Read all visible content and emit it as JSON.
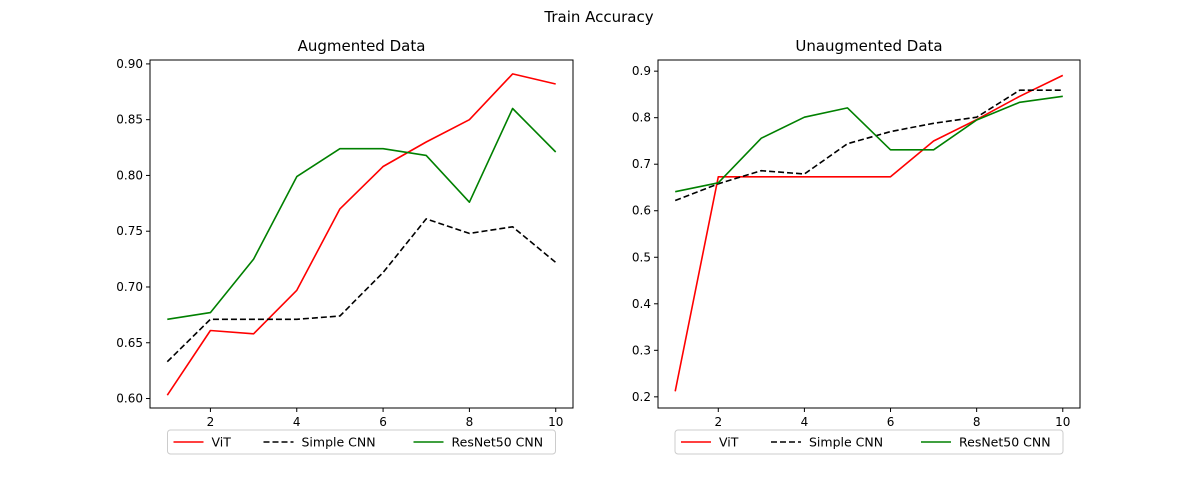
{
  "figure": {
    "title": "Train Accuracy"
  },
  "chart_data": [
    {
      "type": "line",
      "title": "Augmented Data",
      "xlabel": "",
      "ylabel": "",
      "xlim": [
        0.6,
        10.4
      ],
      "ylim": [
        0.5915,
        0.9035
      ],
      "xticks": [
        2,
        4,
        6,
        8,
        10
      ],
      "yticks": [
        0.6,
        0.65,
        0.7,
        0.75,
        0.8,
        0.85,
        0.9
      ],
      "ytick_labels": [
        "0.60",
        "0.65",
        "0.70",
        "0.75",
        "0.80",
        "0.85",
        "0.90"
      ],
      "grid": false,
      "legend_position": "bottom-center",
      "x": [
        1,
        2,
        3,
        4,
        5,
        6,
        7,
        8,
        9,
        10
      ],
      "series": [
        {
          "name": "ViT",
          "color": "#ff0000",
          "dash": "solid",
          "values": [
            0.603,
            0.661,
            0.658,
            0.697,
            0.77,
            0.808,
            0.83,
            0.85,
            0.891,
            0.882
          ]
        },
        {
          "name": "Simple CNN",
          "color": "#000000",
          "dash": "dashed",
          "values": [
            0.633,
            0.671,
            0.671,
            0.671,
            0.674,
            0.713,
            0.761,
            0.748,
            0.754,
            0.722
          ]
        },
        {
          "name": "ResNet50 CNN",
          "color": "#008000",
          "dash": "solid",
          "values": [
            0.671,
            0.677,
            0.725,
            0.799,
            0.824,
            0.824,
            0.818,
            0.776,
            0.86,
            0.821
          ]
        }
      ]
    },
    {
      "type": "line",
      "title": "Unaugmented Data",
      "xlabel": "",
      "ylabel": "",
      "xlim": [
        0.6,
        10.4
      ],
      "ylim": [
        0.176,
        0.924
      ],
      "xticks": [
        2,
        4,
        6,
        8,
        10
      ],
      "yticks": [
        0.2,
        0.3,
        0.4,
        0.5,
        0.6,
        0.7,
        0.8,
        0.9
      ],
      "ytick_labels": [
        "0.2",
        "0.3",
        "0.4",
        "0.5",
        "0.6",
        "0.7",
        "0.8",
        "0.9"
      ],
      "grid": false,
      "legend_position": "bottom-center",
      "x": [
        1,
        2,
        3,
        4,
        5,
        6,
        7,
        8,
        9,
        10
      ],
      "series": [
        {
          "name": "ViT",
          "color": "#ff0000",
          "dash": "solid",
          "values": [
            0.212,
            0.673,
            0.673,
            0.673,
            0.673,
            0.673,
            0.75,
            0.796,
            0.846,
            0.891
          ]
        },
        {
          "name": "Simple CNN",
          "color": "#000000",
          "dash": "dashed",
          "values": [
            0.622,
            0.658,
            0.686,
            0.679,
            0.744,
            0.77,
            0.788,
            0.801,
            0.859,
            0.859
          ]
        },
        {
          "name": "ResNet50 CNN",
          "color": "#008000",
          "dash": "solid",
          "values": [
            0.641,
            0.66,
            0.756,
            0.801,
            0.821,
            0.731,
            0.731,
            0.795,
            0.833,
            0.846
          ]
        }
      ]
    }
  ]
}
